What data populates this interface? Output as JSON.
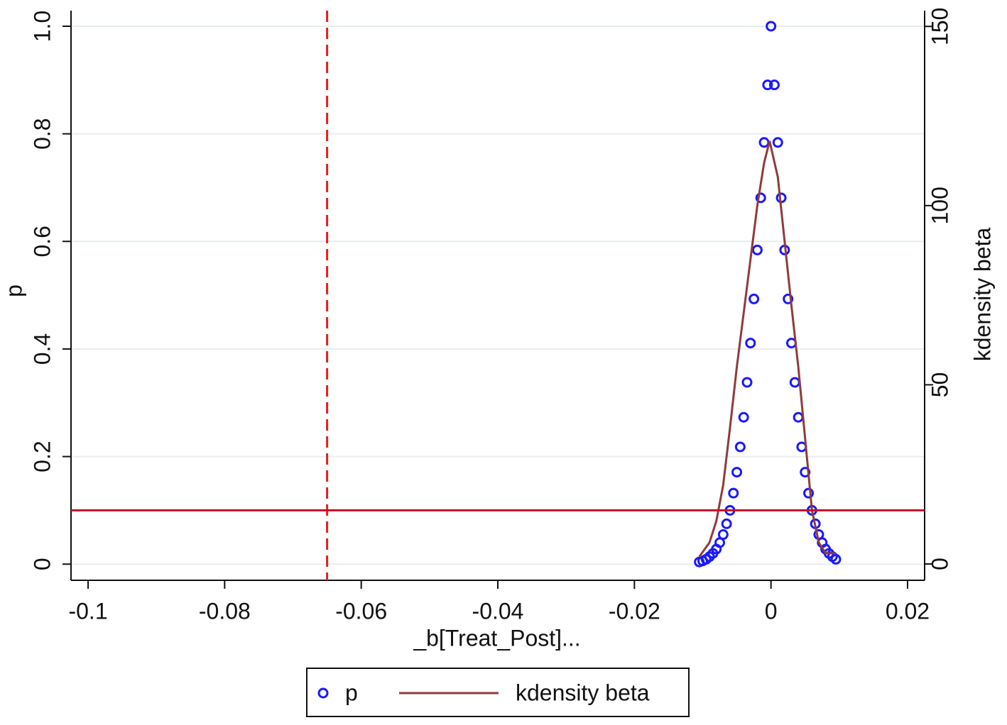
{
  "chart_data": {
    "type": "scatter",
    "x_label": "_b[Treat_Post]...",
    "y_label": "p",
    "y2_label": "kdensity beta",
    "xlim": [
      -0.1025,
      0.0225
    ],
    "xticks": [
      -0.1,
      -0.08,
      -0.06,
      -0.04,
      -0.02,
      0,
      0.02
    ],
    "ylim": [
      -0.03,
      1.029
    ],
    "yticks": [
      0,
      0.2,
      0.4,
      0.6,
      0.8,
      {
        "value": 1,
        "label": "1.0"
      }
    ],
    "y2lim": [
      -4.55,
      154.4
    ],
    "y2ticks": [
      0,
      50,
      100,
      150
    ],
    "grid": true,
    "legend": "bottom",
    "series": [
      {
        "name": "p",
        "type": "scatter",
        "color": "#1a1aff",
        "x": [
          -0.0105,
          -0.01,
          -0.0095,
          -0.009,
          -0.0085,
          -0.008,
          -0.0075,
          -0.007,
          -0.0065,
          -0.006,
          -0.0055,
          -0.005,
          -0.0045,
          -0.004,
          -0.0035,
          -0.003,
          -0.0025,
          -0.002,
          -0.0015,
          -0.001,
          -0.0005,
          0,
          0.0005,
          0.001,
          0.0015,
          0.002,
          0.0025,
          0.003,
          0.0035,
          0.004,
          0.0045,
          0.005,
          0.0055,
          0.006,
          0.0065,
          0.007,
          0.0075,
          0.008,
          0.0085,
          0.009,
          0.0095
        ],
        "values": [
          0.004,
          0.006,
          0.009,
          0.014,
          0.02,
          0.028,
          0.04,
          0.055,
          0.075,
          0.1,
          0.132,
          0.171,
          0.218,
          0.273,
          0.338,
          0.411,
          0.493,
          0.584,
          0.681,
          0.784,
          0.891,
          1,
          0.891,
          0.784,
          0.681,
          0.584,
          0.493,
          0.411,
          0.338,
          0.273,
          0.218,
          0.171,
          0.132,
          0.1,
          0.075,
          0.055,
          0.04,
          0.028,
          0.02,
          0.014,
          0.009
        ]
      },
      {
        "name": "kdensity beta",
        "type": "line",
        "axis": "y2",
        "color": "#8f3b3b",
        "x": [
          -0.0105,
          -0.009,
          -0.008,
          -0.007,
          -0.006,
          -0.005,
          -0.004,
          -0.003,
          -0.002,
          -0.001,
          -0.0002,
          0.001,
          0.002,
          0.003,
          0.004,
          0.005,
          0.006,
          0.007,
          0.008,
          0.0095
        ],
        "values": [
          2,
          6,
          12,
          22,
          38,
          55,
          70,
          85,
          100,
          112,
          118,
          108,
          90,
          72,
          55,
          35,
          15,
          6,
          3,
          3
        ]
      }
    ],
    "reference_lines": [
      {
        "axis": "x",
        "value": -0.065,
        "color": "#e02020",
        "style": "dashed"
      },
      {
        "axis": "y",
        "value": 0.1,
        "color": "#c0102a",
        "style": "solid"
      }
    ]
  }
}
